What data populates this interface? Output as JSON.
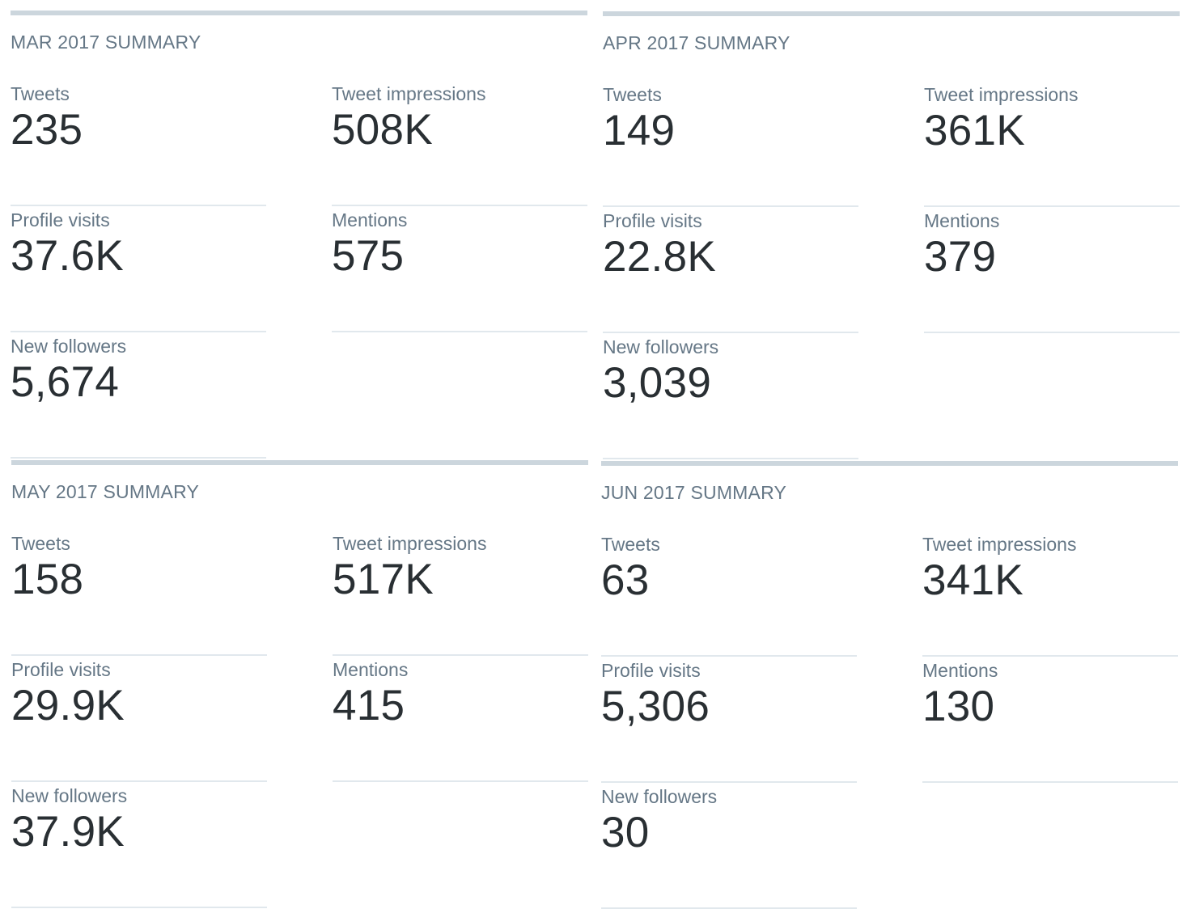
{
  "summaries": [
    {
      "title": "MAR 2017 SUMMARY",
      "metrics": [
        {
          "label": "Tweets",
          "value": "235"
        },
        {
          "label": "Tweet impressions",
          "value": "508K"
        },
        {
          "label": "Profile visits",
          "value": "37.6K"
        },
        {
          "label": "Mentions",
          "value": "575"
        },
        {
          "label": "New followers",
          "value": "5,674"
        }
      ]
    },
    {
      "title": "APR 2017 SUMMARY",
      "metrics": [
        {
          "label": "Tweets",
          "value": "149"
        },
        {
          "label": "Tweet impressions",
          "value": "361K"
        },
        {
          "label": "Profile visits",
          "value": "22.8K"
        },
        {
          "label": "Mentions",
          "value": "379"
        },
        {
          "label": "New followers",
          "value": "3,039"
        }
      ]
    },
    {
      "title": "MAY 2017 SUMMARY",
      "metrics": [
        {
          "label": "Tweets",
          "value": "158"
        },
        {
          "label": "Tweet impressions",
          "value": "517K"
        },
        {
          "label": "Profile visits",
          "value": "29.9K"
        },
        {
          "label": "Mentions",
          "value": "415"
        },
        {
          "label": "New followers",
          "value": "37.9K"
        }
      ]
    },
    {
      "title": "JUN 2017 SUMMARY",
      "metrics": [
        {
          "label": "Tweets",
          "value": "63"
        },
        {
          "label": "Tweet impressions",
          "value": "341K"
        },
        {
          "label": "Profile visits",
          "value": "5,306"
        },
        {
          "label": "Mentions",
          "value": "130"
        },
        {
          "label": "New followers",
          "value": "30"
        }
      ]
    }
  ],
  "colors": {
    "label": "#657786",
    "value": "#292f33",
    "panel_rule": "#ccd6dd",
    "metric_rule": "#e1e8ed"
  }
}
